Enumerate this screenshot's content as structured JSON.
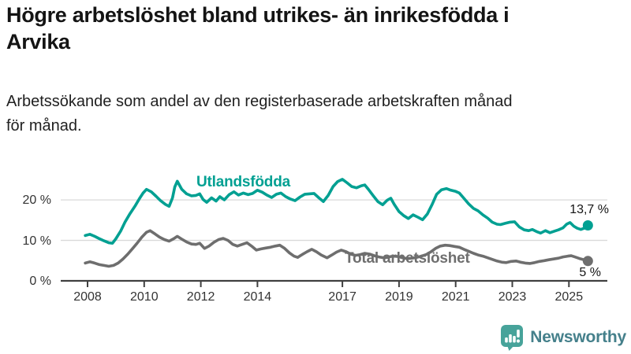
{
  "header": {
    "title": "Högre arbetslöshet bland utrikes- än inrikesfödda i\nArvika",
    "subtitle": "Arbetssökande som andel av den registerbaserade arbetskraften månad\nför månad."
  },
  "chart_data": {
    "type": "line",
    "title": "Högre arbetslöshet bland utrikes- än inrikesfödda i Arvika",
    "subtitle": "Arbetssökande som andel av den registerbaserade arbetskraften månad för månad.",
    "grid": "horizontal-gridlines-at-10-and-20",
    "legend_position": "inline-labels-on-lines",
    "x_axis": {
      "min": 2007.9,
      "max": 2025.85,
      "ticks": [
        {
          "year": 2008,
          "label": "2008"
        },
        {
          "year": 2010,
          "label": "2010"
        },
        {
          "year": 2012,
          "label": "2012"
        },
        {
          "year": 2014,
          "label": "2014"
        },
        {
          "year": 2017,
          "label": "2017"
        },
        {
          "year": 2019,
          "label": "2019"
        },
        {
          "year": 2021,
          "label": "2021"
        },
        {
          "year": 2023,
          "label": "2023"
        },
        {
          "year": 2025,
          "label": "2025"
        }
      ]
    },
    "y_axis": {
      "min": 0,
      "max": 26,
      "unit": "%",
      "ticks": [
        {
          "value": 0,
          "label": "0 %"
        },
        {
          "value": 10,
          "label": "10 %"
        },
        {
          "value": 20,
          "label": "20 %"
        }
      ]
    },
    "series": [
      {
        "name": "Utlandsfödda",
        "color": "#00a092",
        "end_label": "13,7 %",
        "end_value": 13.7,
        "points": [
          [
            2007.92,
            11.2
          ],
          [
            2008.08,
            11.5
          ],
          [
            2008.25,
            11.0
          ],
          [
            2008.42,
            10.4
          ],
          [
            2008.58,
            9.9
          ],
          [
            2008.75,
            9.4
          ],
          [
            2008.88,
            9.3
          ],
          [
            2009.0,
            10.4
          ],
          [
            2009.17,
            12.3
          ],
          [
            2009.33,
            14.6
          ],
          [
            2009.5,
            16.6
          ],
          [
            2009.67,
            18.4
          ],
          [
            2009.83,
            20.3
          ],
          [
            2009.96,
            21.7
          ],
          [
            2010.08,
            22.6
          ],
          [
            2010.25,
            22.0
          ],
          [
            2010.42,
            20.9
          ],
          [
            2010.58,
            19.8
          ],
          [
            2010.75,
            18.9
          ],
          [
            2010.88,
            18.4
          ],
          [
            2011.0,
            20.5
          ],
          [
            2011.08,
            23.2
          ],
          [
            2011.17,
            24.6
          ],
          [
            2011.33,
            22.6
          ],
          [
            2011.5,
            21.5
          ],
          [
            2011.67,
            21.0
          ],
          [
            2011.83,
            21.1
          ],
          [
            2011.96,
            21.5
          ],
          [
            2012.08,
            20.1
          ],
          [
            2012.21,
            19.4
          ],
          [
            2012.38,
            20.5
          ],
          [
            2012.54,
            19.7
          ],
          [
            2012.67,
            20.8
          ],
          [
            2012.83,
            20.0
          ],
          [
            2013.0,
            21.3
          ],
          [
            2013.17,
            22.0
          ],
          [
            2013.33,
            21.2
          ],
          [
            2013.5,
            21.7
          ],
          [
            2013.67,
            21.3
          ],
          [
            2013.83,
            21.6
          ],
          [
            2014.0,
            22.4
          ],
          [
            2014.17,
            21.9
          ],
          [
            2014.33,
            21.2
          ],
          [
            2014.5,
            20.6
          ],
          [
            2014.67,
            21.4
          ],
          [
            2014.83,
            21.7
          ],
          [
            2015.0,
            20.8
          ],
          [
            2015.17,
            20.2
          ],
          [
            2015.33,
            19.8
          ],
          [
            2015.5,
            20.7
          ],
          [
            2015.67,
            21.4
          ],
          [
            2015.83,
            21.5
          ],
          [
            2016.0,
            21.6
          ],
          [
            2016.17,
            20.5
          ],
          [
            2016.33,
            19.6
          ],
          [
            2016.5,
            21.1
          ],
          [
            2016.67,
            23.3
          ],
          [
            2016.83,
            24.5
          ],
          [
            2017.0,
            25.1
          ],
          [
            2017.17,
            24.2
          ],
          [
            2017.33,
            23.3
          ],
          [
            2017.5,
            23.0
          ],
          [
            2017.67,
            23.5
          ],
          [
            2017.79,
            23.7
          ],
          [
            2017.92,
            22.6
          ],
          [
            2018.08,
            21.1
          ],
          [
            2018.25,
            19.6
          ],
          [
            2018.42,
            18.8
          ],
          [
            2018.58,
            19.9
          ],
          [
            2018.71,
            20.4
          ],
          [
            2018.83,
            18.9
          ],
          [
            2019.0,
            17.1
          ],
          [
            2019.17,
            16.1
          ],
          [
            2019.33,
            15.4
          ],
          [
            2019.5,
            16.3
          ],
          [
            2019.67,
            15.7
          ],
          [
            2019.83,
            15.1
          ],
          [
            2020.0,
            16.5
          ],
          [
            2020.17,
            18.9
          ],
          [
            2020.33,
            21.4
          ],
          [
            2020.5,
            22.5
          ],
          [
            2020.67,
            22.8
          ],
          [
            2020.83,
            22.4
          ],
          [
            2021.0,
            22.1
          ],
          [
            2021.13,
            21.7
          ],
          [
            2021.29,
            20.4
          ],
          [
            2021.46,
            19.0
          ],
          [
            2021.63,
            17.9
          ],
          [
            2021.79,
            17.3
          ],
          [
            2021.96,
            16.3
          ],
          [
            2022.13,
            15.5
          ],
          [
            2022.29,
            14.5
          ],
          [
            2022.46,
            14.0
          ],
          [
            2022.58,
            13.9
          ],
          [
            2022.75,
            14.2
          ],
          [
            2022.92,
            14.5
          ],
          [
            2023.08,
            14.6
          ],
          [
            2023.25,
            13.3
          ],
          [
            2023.42,
            12.6
          ],
          [
            2023.58,
            12.4
          ],
          [
            2023.71,
            12.7
          ],
          [
            2023.88,
            12.1
          ],
          [
            2024.0,
            11.8
          ],
          [
            2024.17,
            12.4
          ],
          [
            2024.33,
            11.9
          ],
          [
            2024.5,
            12.3
          ],
          [
            2024.63,
            12.6
          ],
          [
            2024.79,
            13.1
          ],
          [
            2024.92,
            14.0
          ],
          [
            2025.04,
            14.4
          ],
          [
            2025.17,
            13.5
          ],
          [
            2025.29,
            13.0
          ],
          [
            2025.42,
            12.7
          ],
          [
            2025.54,
            13.0
          ],
          [
            2025.67,
            13.7
          ]
        ]
      },
      {
        "name": "Total arbetslöshet",
        "color": "#6e6e6e",
        "end_label": "5 %",
        "end_value": 5,
        "points": [
          [
            2007.92,
            4.4
          ],
          [
            2008.08,
            4.7
          ],
          [
            2008.25,
            4.4
          ],
          [
            2008.42,
            4.0
          ],
          [
            2008.58,
            3.8
          ],
          [
            2008.75,
            3.6
          ],
          [
            2008.92,
            3.8
          ],
          [
            2009.08,
            4.4
          ],
          [
            2009.25,
            5.4
          ],
          [
            2009.42,
            6.6
          ],
          [
            2009.58,
            7.9
          ],
          [
            2009.75,
            9.3
          ],
          [
            2009.92,
            10.8
          ],
          [
            2010.08,
            12.0
          ],
          [
            2010.21,
            12.4
          ],
          [
            2010.38,
            11.6
          ],
          [
            2010.54,
            10.8
          ],
          [
            2010.71,
            10.2
          ],
          [
            2010.88,
            9.8
          ],
          [
            2011.04,
            10.4
          ],
          [
            2011.17,
            11.0
          ],
          [
            2011.33,
            10.3
          ],
          [
            2011.5,
            9.6
          ],
          [
            2011.67,
            9.1
          ],
          [
            2011.83,
            9.0
          ],
          [
            2011.96,
            9.3
          ],
          [
            2012.13,
            8.0
          ],
          [
            2012.29,
            8.6
          ],
          [
            2012.46,
            9.5
          ],
          [
            2012.63,
            10.2
          ],
          [
            2012.79,
            10.5
          ],
          [
            2012.96,
            10.0
          ],
          [
            2013.13,
            9.0
          ],
          [
            2013.29,
            8.6
          ],
          [
            2013.46,
            9.0
          ],
          [
            2013.63,
            9.4
          ],
          [
            2013.79,
            8.6
          ],
          [
            2013.96,
            7.6
          ],
          [
            2014.13,
            7.9
          ],
          [
            2014.29,
            8.1
          ],
          [
            2014.46,
            8.3
          ],
          [
            2014.63,
            8.6
          ],
          [
            2014.79,
            8.8
          ],
          [
            2014.96,
            8.0
          ],
          [
            2015.13,
            6.9
          ],
          [
            2015.29,
            6.1
          ],
          [
            2015.42,
            5.8
          ],
          [
            2015.58,
            6.5
          ],
          [
            2015.75,
            7.2
          ],
          [
            2015.92,
            7.8
          ],
          [
            2016.08,
            7.2
          ],
          [
            2016.25,
            6.4
          ],
          [
            2016.46,
            5.7
          ],
          [
            2016.63,
            6.4
          ],
          [
            2016.79,
            7.1
          ],
          [
            2016.96,
            7.6
          ],
          [
            2017.13,
            7.2
          ],
          [
            2017.29,
            6.6
          ],
          [
            2017.46,
            6.3
          ],
          [
            2017.63,
            6.5
          ],
          [
            2017.79,
            6.8
          ],
          [
            2017.96,
            6.6
          ],
          [
            2018.13,
            6.2
          ],
          [
            2018.29,
            5.9
          ],
          [
            2018.46,
            5.7
          ],
          [
            2018.63,
            5.9
          ],
          [
            2018.79,
            6.1
          ],
          [
            2018.96,
            6.0
          ],
          [
            2019.13,
            5.7
          ],
          [
            2019.29,
            5.5
          ],
          [
            2019.46,
            5.6
          ],
          [
            2019.63,
            5.8
          ],
          [
            2019.79,
            6.1
          ],
          [
            2019.96,
            6.5
          ],
          [
            2020.13,
            7.2
          ],
          [
            2020.29,
            8.0
          ],
          [
            2020.46,
            8.6
          ],
          [
            2020.63,
            8.8
          ],
          [
            2020.79,
            8.7
          ],
          [
            2020.96,
            8.5
          ],
          [
            2021.13,
            8.3
          ],
          [
            2021.29,
            7.8
          ],
          [
            2021.46,
            7.3
          ],
          [
            2021.63,
            6.8
          ],
          [
            2021.79,
            6.4
          ],
          [
            2021.96,
            6.1
          ],
          [
            2022.13,
            5.7
          ],
          [
            2022.29,
            5.3
          ],
          [
            2022.46,
            4.9
          ],
          [
            2022.63,
            4.6
          ],
          [
            2022.79,
            4.5
          ],
          [
            2022.96,
            4.8
          ],
          [
            2023.13,
            4.9
          ],
          [
            2023.29,
            4.6
          ],
          [
            2023.46,
            4.4
          ],
          [
            2023.63,
            4.3
          ],
          [
            2023.79,
            4.5
          ],
          [
            2023.96,
            4.8
          ],
          [
            2024.13,
            5.0
          ],
          [
            2024.29,
            5.2
          ],
          [
            2024.46,
            5.4
          ],
          [
            2024.63,
            5.6
          ],
          [
            2024.79,
            5.9
          ],
          [
            2024.96,
            6.1
          ],
          [
            2025.08,
            6.2
          ],
          [
            2025.21,
            5.9
          ],
          [
            2025.38,
            5.5
          ],
          [
            2025.54,
            5.2
          ],
          [
            2025.67,
            4.9
          ]
        ]
      }
    ],
    "colors": {
      "grid": "#d9d9d9",
      "axis": "#404040",
      "axis_text": "#333333",
      "annotation_text": "#141414"
    }
  },
  "branding": {
    "logo_text": "Newsworthy",
    "icon": "bar-chart-speech-bubble-icon",
    "icon_color": "#47a39a",
    "text_color": "#45808b"
  }
}
